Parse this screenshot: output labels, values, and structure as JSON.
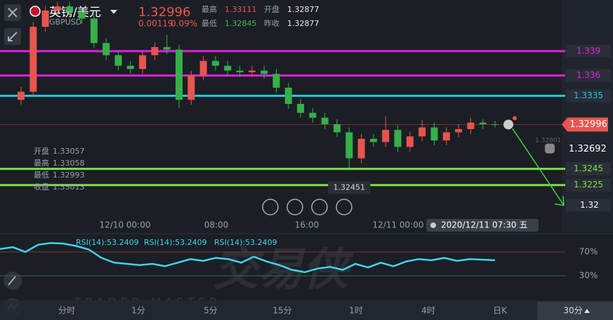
{
  "header": {
    "title": "英镑/美元",
    "symbol": "GBPUSD",
    "price": 1.32996,
    "change": 0.00119,
    "change_pct": "0.09%",
    "stats": [
      {
        "label": "最高",
        "value": 1.33111
      },
      {
        "label": "开盘",
        "value": 1.32877
      },
      {
        "label": "最低",
        "value": 1.32845
      },
      {
        "label": "昨收",
        "value": 1.32877
      }
    ]
  },
  "info_box": [
    {
      "label": "开盘",
      "value": 1.33057
    },
    {
      "label": "最高",
      "value": 1.33058
    },
    {
      "label": "最低",
      "value": 1.32993
    },
    {
      "label": "收盘",
      "value": 1.33013
    }
  ],
  "chart_data": {
    "type": "candlestick",
    "ylim": [
      1.3185,
      1.3453
    ],
    "up_color": "#e8554e",
    "down_color": "#35b04a",
    "open": [
      1.333,
      1.334,
      1.342,
      1.344,
      1.3445,
      1.3438,
      1.343,
      1.34,
      1.3385,
      1.3372,
      1.3368,
      1.3385,
      1.3395,
      1.3392,
      1.333,
      1.336,
      1.3378,
      1.3372,
      1.3366,
      1.3364,
      1.3366,
      1.3362,
      1.3345,
      1.3325,
      1.3314,
      1.3308,
      1.33,
      1.329,
      1.3258,
      1.3282,
      1.3278,
      1.3293,
      1.3272,
      1.3285,
      1.3296,
      1.328,
      1.329,
      1.3294,
      1.3302,
      1.33
    ],
    "close": [
      1.334,
      1.342,
      1.344,
      1.3445,
      1.3438,
      1.343,
      1.34,
      1.3385,
      1.3372,
      1.3368,
      1.3385,
      1.3395,
      1.3392,
      1.333,
      1.336,
      1.3378,
      1.3372,
      1.3366,
      1.3364,
      1.3366,
      1.3362,
      1.3345,
      1.3325,
      1.3314,
      1.3308,
      1.33,
      1.329,
      1.3258,
      1.3282,
      1.3278,
      1.3293,
      1.3272,
      1.3285,
      1.3296,
      1.328,
      1.329,
      1.3294,
      1.3302,
      1.33,
      1.32996
    ],
    "high": [
      1.3346,
      1.3426,
      1.3446,
      1.3451,
      1.3451,
      1.3444,
      1.3436,
      1.3406,
      1.3391,
      1.3378,
      1.3391,
      1.3401,
      1.341,
      1.3398,
      1.3366,
      1.3384,
      1.3384,
      1.3378,
      1.3372,
      1.3372,
      1.3372,
      1.3368,
      1.3351,
      1.3331,
      1.332,
      1.3314,
      1.3306,
      1.3296,
      1.3288,
      1.3288,
      1.331,
      1.3299,
      1.3291,
      1.3305,
      1.3302,
      1.3296,
      1.33,
      1.3308,
      1.3306,
      1.3304
    ],
    "low": [
      1.3324,
      1.3334,
      1.3414,
      1.3434,
      1.3432,
      1.3424,
      1.3394,
      1.3379,
      1.3366,
      1.3362,
      1.3362,
      1.3379,
      1.3386,
      1.332,
      1.3324,
      1.3354,
      1.3366,
      1.336,
      1.3358,
      1.3358,
      1.3356,
      1.3339,
      1.3319,
      1.3308,
      1.3302,
      1.3294,
      1.3284,
      1.32451,
      1.3252,
      1.3272,
      1.3272,
      1.3266,
      1.3266,
      1.3279,
      1.3274,
      1.3274,
      1.3284,
      1.3288,
      1.3294,
      1.3296
    ],
    "price_lines": [
      {
        "value": 1.339,
        "color": "#e020e0"
      },
      {
        "value": 1.336,
        "color": "#e020e0"
      },
      {
        "value": 1.3335,
        "color": "#1ec8e0"
      },
      {
        "value": 1.3245,
        "color": "#7ee040"
      },
      {
        "value": 1.3225,
        "color": "#7ee040"
      }
    ],
    "current_price": 1.32996,
    "alert_price": 1.32692,
    "faint_price": 1.32801,
    "low_label": 1.32451,
    "target": 1.32,
    "x_labels": [
      "12/10 00:00",
      "08:00",
      "16:00",
      "12/11 00:00"
    ],
    "time_tag": "2020/12/11 07:30 五"
  },
  "rsi": {
    "labels": [
      "RSI(14):53.2409",
      "RSI(14):53.2409",
      "RSI(14):53.2409"
    ],
    "ylim": [
      0,
      90
    ],
    "yticks": [
      {
        "value": 70,
        "label": "70%"
      },
      {
        "value": 30,
        "label": "30%"
      }
    ],
    "color": "#3fd6ec",
    "values": [
      75,
      78,
      70,
      82,
      85,
      84,
      80,
      74,
      60,
      52,
      50,
      48,
      50,
      46,
      52,
      58,
      55,
      60,
      58,
      52,
      62,
      54,
      48,
      40,
      36,
      42,
      45,
      40,
      50,
      44,
      52,
      46,
      54,
      58,
      56,
      60,
      55,
      58,
      57,
      56
    ]
  },
  "watermark": {
    "brand": "交易侠",
    "tagline": "TRADER MASTER"
  },
  "periods": {
    "items": [
      "分时",
      "1分",
      "5分",
      "15分",
      "1时",
      "4时",
      "日K"
    ],
    "selected": "30分"
  }
}
